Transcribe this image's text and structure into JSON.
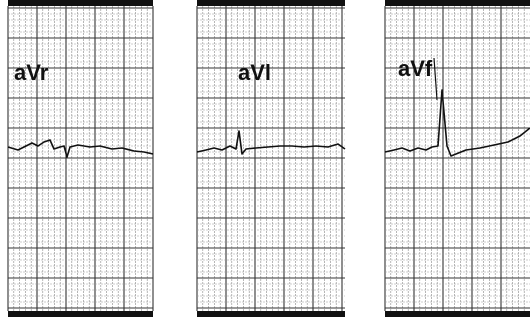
{
  "panels": [
    {
      "label": "aVr"
    },
    {
      "label": "aVl"
    },
    {
      "label": "aVf"
    }
  ]
}
